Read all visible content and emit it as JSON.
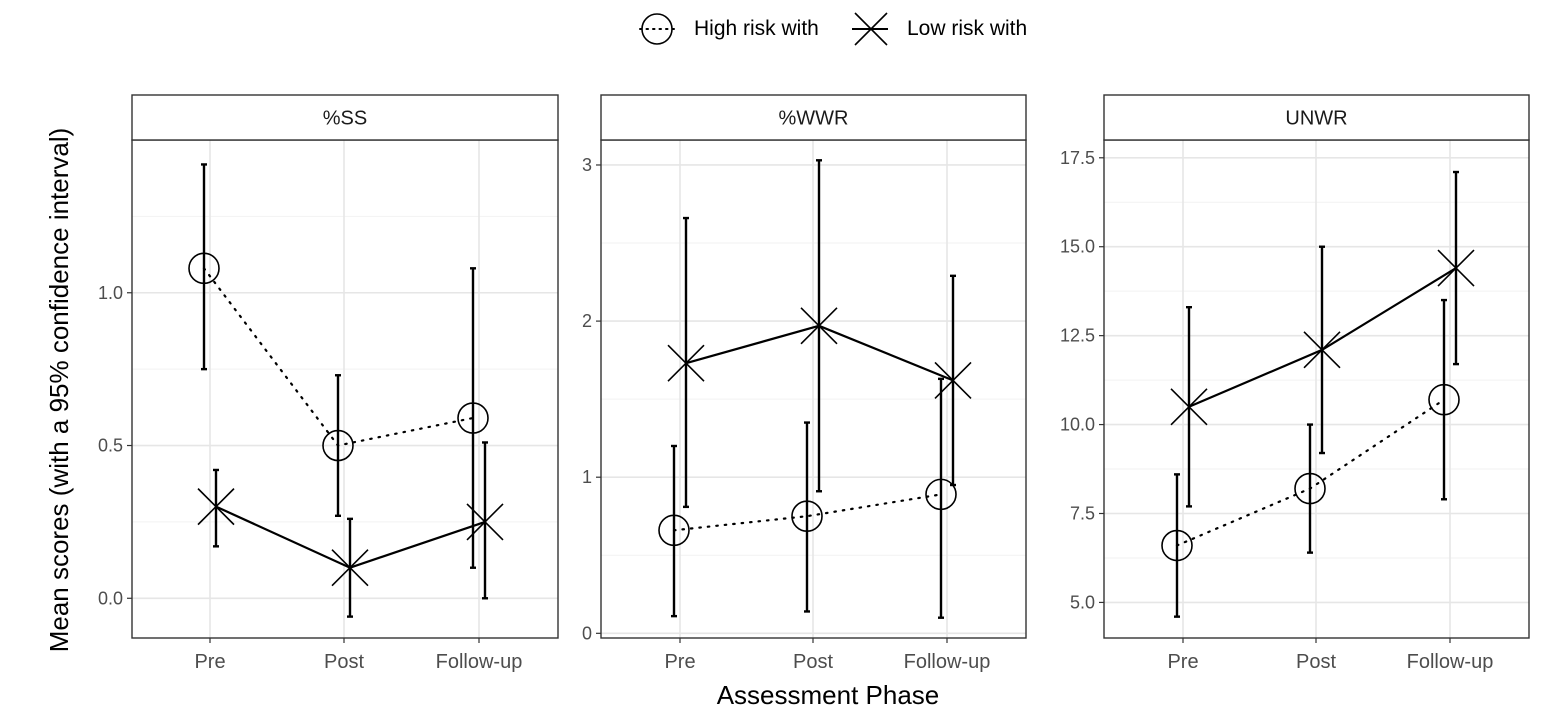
{
  "legend": {
    "items": [
      {
        "label": "High risk with",
        "icon": "circle-marker-icon",
        "line": "dotted"
      },
      {
        "label": "Low risk with",
        "icon": "x-marker-icon",
        "line": "solid"
      }
    ]
  },
  "shared": {
    "xlabel": "Assessment Phase",
    "ylabel": "Mean scores (with a 95% confidence interval)"
  },
  "chart_data": [
    {
      "type": "line",
      "title": "%SS",
      "categories": [
        "Pre",
        "Post",
        "Follow-up"
      ],
      "ylim": [
        -0.13,
        1.5
      ],
      "yticks": [
        0.0,
        0.5,
        1.0
      ],
      "ytick_labels": [
        "0.0",
        "0.5",
        "1.0"
      ],
      "grid": true,
      "series": [
        {
          "name": "High risk with",
          "values": [
            1.08,
            0.5,
            0.59
          ],
          "ci_low": [
            0.75,
            0.27,
            0.1
          ],
          "ci_high": [
            1.42,
            0.73,
            1.08
          ]
        },
        {
          "name": "Low risk with",
          "values": [
            0.3,
            0.1,
            0.25
          ],
          "ci_low": [
            0.17,
            -0.06,
            0.0
          ],
          "ci_high": [
            0.42,
            0.26,
            0.51
          ]
        }
      ]
    },
    {
      "type": "line",
      "title": "%WWR",
      "categories": [
        "Pre",
        "Post",
        "Follow-up"
      ],
      "ylim": [
        -0.03,
        3.16
      ],
      "yticks": [
        0,
        1,
        2,
        3
      ],
      "ytick_labels": [
        "0",
        "1",
        "2",
        "3"
      ],
      "grid": true,
      "series": [
        {
          "name": "High risk with",
          "values": [
            0.66,
            0.75,
            0.89
          ],
          "ci_low": [
            0.11,
            0.14,
            0.1
          ],
          "ci_high": [
            1.2,
            1.35,
            1.63
          ]
        },
        {
          "name": "Low risk with",
          "values": [
            1.73,
            1.97,
            1.62
          ],
          "ci_low": [
            0.81,
            0.91,
            0.95
          ],
          "ci_high": [
            2.66,
            3.03,
            2.29
          ]
        }
      ]
    },
    {
      "type": "line",
      "title": "UNWR",
      "categories": [
        "Pre",
        "Post",
        "Follow-up"
      ],
      "ylim": [
        4.0,
        18.0
      ],
      "yticks": [
        5.0,
        7.5,
        10.0,
        12.5,
        15.0,
        17.5
      ],
      "ytick_labels": [
        "5.0",
        "7.5",
        "10.0",
        "12.5",
        "15.0",
        "17.5"
      ],
      "grid": true,
      "series": [
        {
          "name": "High risk with",
          "values": [
            6.6,
            8.2,
            10.7
          ],
          "ci_low": [
            4.6,
            6.4,
            7.9
          ],
          "ci_high": [
            8.6,
            10.0,
            13.5
          ]
        },
        {
          "name": "Low risk with",
          "values": [
            10.5,
            12.1,
            14.4
          ],
          "ci_low": [
            7.7,
            9.2,
            11.7
          ],
          "ci_high": [
            13.3,
            15.0,
            17.1
          ]
        }
      ]
    }
  ]
}
